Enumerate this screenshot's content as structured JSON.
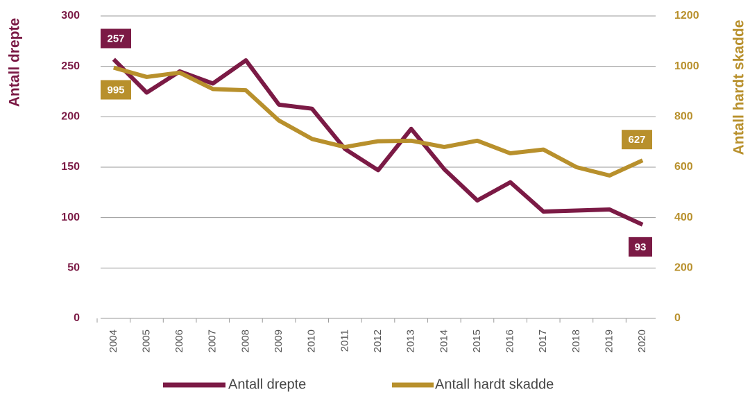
{
  "chart_data": {
    "type": "line",
    "categories": [
      "2004",
      "2005",
      "2006",
      "2007",
      "2008",
      "2009",
      "2010",
      "2011",
      "2012",
      "2013",
      "2014",
      "2015",
      "2016",
      "2017",
      "2018",
      "2019",
      "2020"
    ],
    "ylabel": "Antall drepte",
    "y2label": "Antall hardt skadde",
    "ylim": [
      0,
      300
    ],
    "yticks": [
      0,
      50,
      100,
      150,
      200,
      250,
      300
    ],
    "y2lim": [
      0,
      1200
    ],
    "y2ticks": [
      0,
      200,
      400,
      600,
      800,
      1000,
      1200
    ],
    "grid": true,
    "legend": "bottom",
    "series": [
      {
        "name": "Antall drepte",
        "color": "#7b1a45",
        "axis": "y",
        "values": [
          257,
          224,
          245,
          233,
          256,
          212,
          208,
          168,
          147,
          188,
          148,
          117,
          135,
          106,
          107,
          108,
          93
        ],
        "value_labels": [
          "257",
          null,
          null,
          null,
          null,
          null,
          null,
          null,
          null,
          null,
          null,
          null,
          null,
          null,
          null,
          null,
          "93"
        ]
      },
      {
        "name": "Antall hardt skadde",
        "color": "#b8902c",
        "axis": "y2",
        "values": [
          995,
          958,
          975,
          910,
          905,
          785,
          712,
          680,
          703,
          705,
          680,
          705,
          655,
          670,
          600,
          567,
          627
        ],
        "value_labels": [
          "995",
          null,
          null,
          null,
          null,
          null,
          null,
          null,
          null,
          null,
          null,
          null,
          null,
          null,
          null,
          null,
          "627"
        ]
      }
    ]
  }
}
